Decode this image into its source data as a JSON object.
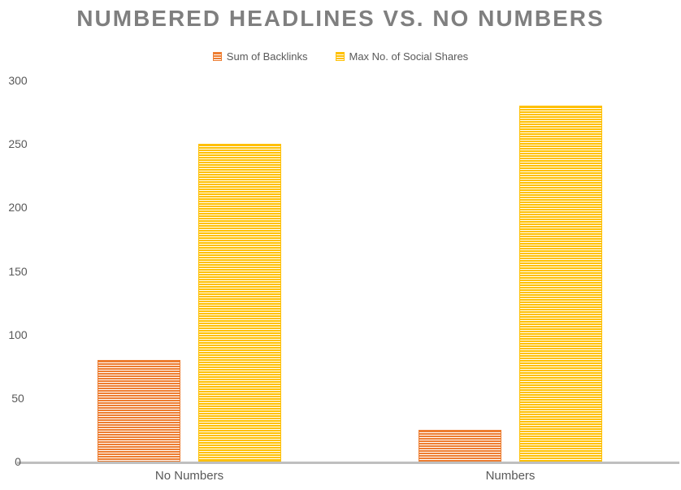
{
  "chart_data": {
    "type": "bar",
    "title": "NUMBERED HEADLINES VS. NO NUMBERS",
    "categories": [
      "No Numbers",
      "Numbers"
    ],
    "series": [
      {
        "name": "Sum of Backlinks",
        "color": "#ED7D31",
        "values": [
          80,
          25
        ]
      },
      {
        "name": "Max No. of Social Shares",
        "color": "#FFC000",
        "values": [
          250,
          280
        ]
      }
    ],
    "xlabel": "",
    "ylabel": "",
    "ylim": [
      0,
      300
    ],
    "yticks": [
      0,
      50,
      100,
      150,
      200,
      250,
      300
    ],
    "grid": false,
    "legend_position": "top",
    "bar_fill_pattern": "horizontal-stripes",
    "colors": {
      "title_text": "#7F7F7F",
      "axis_text": "#595959",
      "axis_line": "#BFBFBF",
      "background": "#FFFFFF"
    }
  }
}
